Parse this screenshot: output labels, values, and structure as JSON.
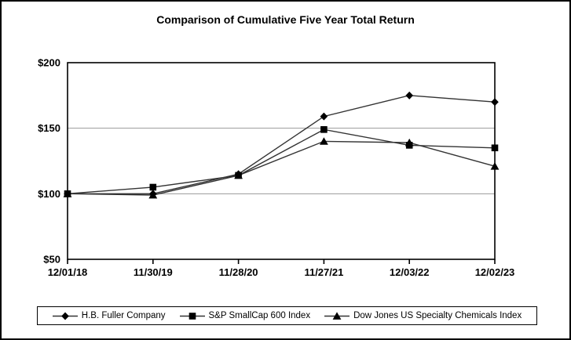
{
  "page": {
    "title": "Comparison of Cumulative Five Year Total Return"
  },
  "chart_data": {
    "type": "line",
    "title": "Comparison of Cumulative Five Year Total Return",
    "categories": [
      "12/01/18",
      "11/30/19",
      "11/28/20",
      "11/27/21",
      "12/03/22",
      "12/02/23"
    ],
    "series": [
      {
        "name": "H.B. Fuller Company",
        "marker": "diamond",
        "values": [
          100,
          100,
          115,
          159,
          175,
          170
        ]
      },
      {
        "name": "S&P SmallCap 600 Index",
        "marker": "square",
        "values": [
          100,
          105,
          114,
          149,
          137,
          135
        ]
      },
      {
        "name": "Dow Jones US Specialty Chemicals Index",
        "marker": "triangle",
        "values": [
          100,
          99,
          114,
          140,
          139,
          121
        ]
      }
    ],
    "y_ticks": [
      {
        "label": "$200",
        "value": 200
      },
      {
        "label": "$150",
        "value": 150
      },
      {
        "label": "$100",
        "value": 100
      },
      {
        "label": "$50",
        "value": 50
      }
    ],
    "ylim": [
      50,
      200
    ],
    "xlabel": "",
    "ylabel": "",
    "grid": "horizontal-only",
    "legend_position": "bottom-boxed",
    "marker_draw_order": [
      0,
      2,
      1
    ],
    "colors": {
      "series_line": "#333333",
      "marker": "#000000",
      "gridline": "#999999",
      "axis": "#000000",
      "background": "#ffffff"
    }
  }
}
